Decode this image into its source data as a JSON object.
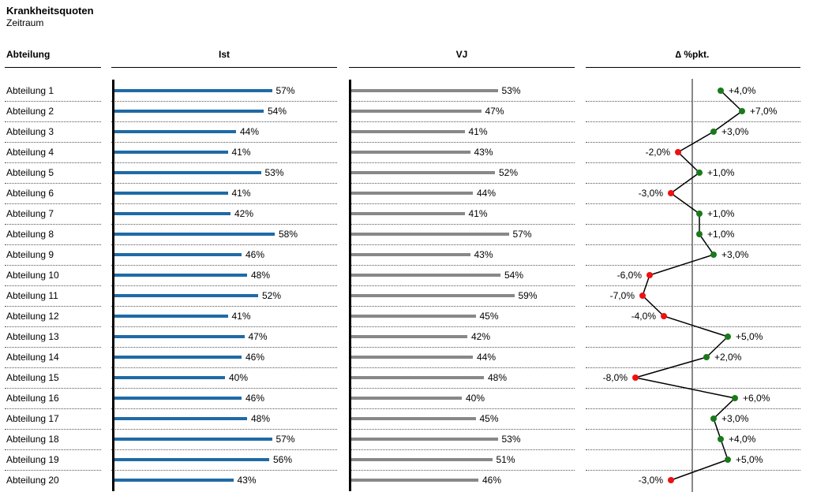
{
  "title": "Krankheitsquoten",
  "subtitle": "Zeitraum",
  "columns": {
    "category": "Abteilung",
    "ist": "Ist",
    "vj": "VJ",
    "delta": "∆ %pkt."
  },
  "colors": {
    "ist": "#1f6aa5",
    "vj": "#888888",
    "positive": "#1a7a1a",
    "negative": "#ee1111",
    "line": "#000000",
    "zero_axis": "#888888"
  },
  "chart_data": [
    {
      "type": "bar",
      "orientation": "horizontal",
      "name": "Ist",
      "categories": [
        "Abteilung 1",
        "Abteilung 2",
        "Abteilung 3",
        "Abteilung 4",
        "Abteilung 5",
        "Abteilung 6",
        "Abteilung 7",
        "Abteilung 8",
        "Abteilung 9",
        "Abteilung 10",
        "Abteilung 11",
        "Abteilung 12",
        "Abteilung 13",
        "Abteilung 14",
        "Abteilung 15",
        "Abteilung 16",
        "Abteilung 17",
        "Abteilung 18",
        "Abteilung 19",
        "Abteilung 20"
      ],
      "values": [
        57,
        54,
        44,
        41,
        53,
        41,
        42,
        58,
        46,
        48,
        52,
        41,
        47,
        46,
        40,
        46,
        48,
        57,
        56,
        43
      ],
      "labels": [
        "57%",
        "54%",
        "44%",
        "41%",
        "53%",
        "41%",
        "42%",
        "58%",
        "46%",
        "48%",
        "52%",
        "41%",
        "47%",
        "46%",
        "40%",
        "46%",
        "48%",
        "57%",
        "56%",
        "43%"
      ],
      "unit": "%"
    },
    {
      "type": "bar",
      "orientation": "horizontal",
      "name": "VJ",
      "categories": [
        "Abteilung 1",
        "Abteilung 2",
        "Abteilung 3",
        "Abteilung 4",
        "Abteilung 5",
        "Abteilung 6",
        "Abteilung 7",
        "Abteilung 8",
        "Abteilung 9",
        "Abteilung 10",
        "Abteilung 11",
        "Abteilung 12",
        "Abteilung 13",
        "Abteilung 14",
        "Abteilung 15",
        "Abteilung 16",
        "Abteilung 17",
        "Abteilung 18",
        "Abteilung 19",
        "Abteilung 20"
      ],
      "values": [
        53,
        47,
        41,
        43,
        52,
        44,
        41,
        57,
        43,
        54,
        59,
        45,
        42,
        44,
        48,
        40,
        45,
        53,
        51,
        46
      ],
      "labels": [
        "53%",
        "47%",
        "41%",
        "43%",
        "52%",
        "44%",
        "41%",
        "57%",
        "43%",
        "54%",
        "59%",
        "45%",
        "42%",
        "44%",
        "48%",
        "40%",
        "45%",
        "53%",
        "51%",
        "46%"
      ],
      "unit": "%"
    },
    {
      "type": "line",
      "name": "∆ %pkt.",
      "categories": [
        "Abteilung 1",
        "Abteilung 2",
        "Abteilung 3",
        "Abteilung 4",
        "Abteilung 5",
        "Abteilung 6",
        "Abteilung 7",
        "Abteilung 8",
        "Abteilung 9",
        "Abteilung 10",
        "Abteilung 11",
        "Abteilung 12",
        "Abteilung 13",
        "Abteilung 14",
        "Abteilung 15",
        "Abteilung 16",
        "Abteilung 17",
        "Abteilung 18",
        "Abteilung 19",
        "Abteilung 20"
      ],
      "values": [
        4,
        7,
        3,
        -2,
        1,
        -3,
        1,
        1,
        3,
        -6,
        -7,
        -4,
        5,
        2,
        -8,
        6,
        3,
        4,
        5,
        -3
      ],
      "labels": [
        "+4,0%",
        "+7,0%",
        "+3,0%",
        "-2,0%",
        "+1,0%",
        "-3,0%",
        "+1,0%",
        "+1,0%",
        "+3,0%",
        "-6,0%",
        "-7,0%",
        "-4,0%",
        "+5,0%",
        "+2,0%",
        "-8,0%",
        "+6,0%",
        "+3,0%",
        "+4,0%",
        "+5,0%",
        "-3,0%"
      ],
      "unit": "%pkt."
    }
  ]
}
